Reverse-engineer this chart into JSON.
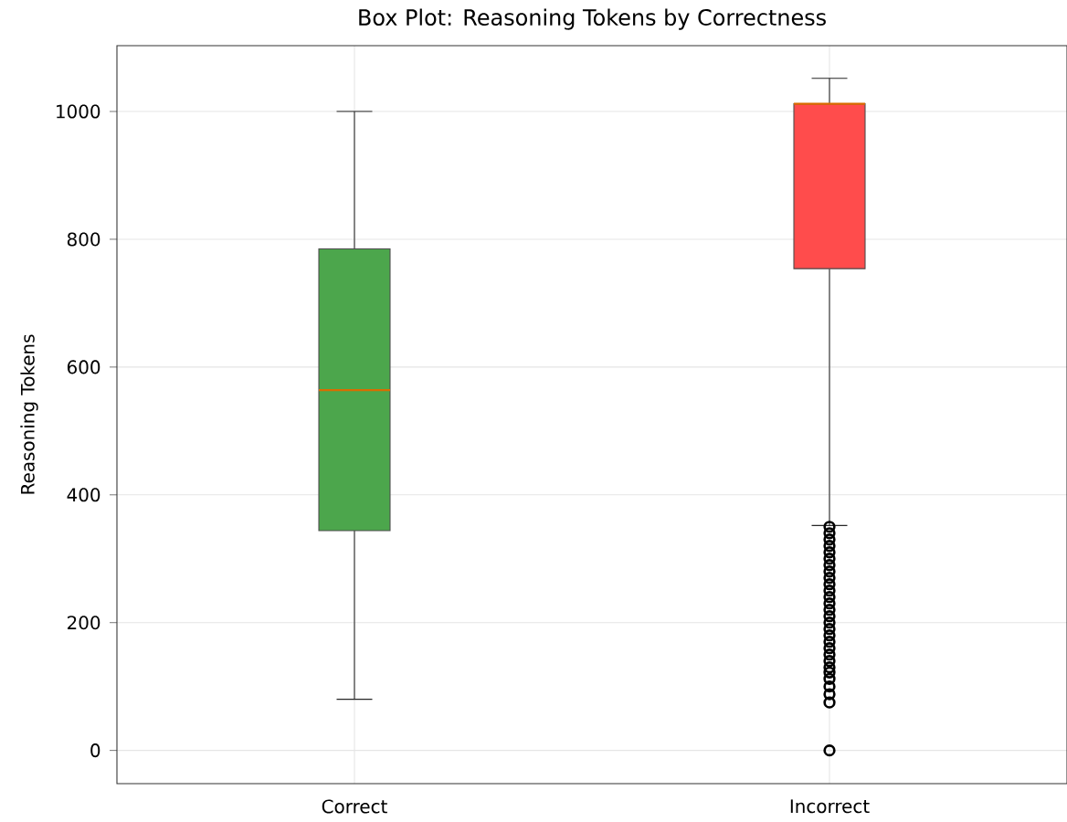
{
  "chart_data": {
    "type": "box",
    "title": "Box Plot: Reasoning Tokens by Correctness",
    "ylabel": "Reasoning Tokens",
    "categories": [
      "Correct",
      "Incorrect"
    ],
    "colors": [
      "#4ca64c",
      "#ff4c4c"
    ],
    "boxes": [
      {
        "low": 80,
        "q1": 344,
        "median": 564,
        "q3": 785,
        "high": 1000
      },
      {
        "low": 352,
        "q1": 754,
        "median": 1012,
        "q3": 1012,
        "high": 1052,
        "outliers": [
          0,
          75,
          88,
          100,
          112,
          122,
          130,
          140,
          150,
          160,
          170,
          180,
          190,
          200,
          210,
          220,
          230,
          240,
          250,
          260,
          270,
          280,
          290,
          300,
          310,
          320,
          330,
          340,
          350
        ]
      }
    ],
    "ylim": [
      -52,
      1103
    ],
    "yticks": [
      0,
      200,
      400,
      600,
      800,
      1000
    ],
    "grid": true
  }
}
